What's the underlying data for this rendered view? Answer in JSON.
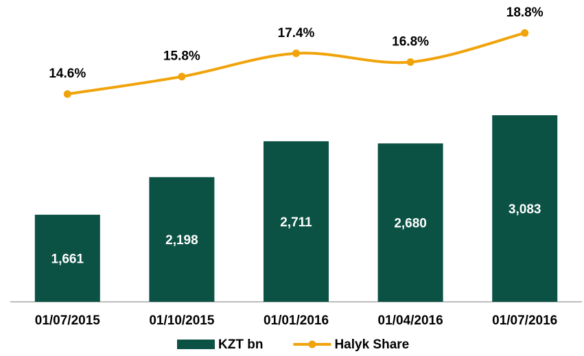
{
  "chart_data": {
    "type": "bar_line",
    "categories": [
      "01/07/2015",
      "01/10/2015",
      "01/01/2016",
      "01/04/2016",
      "01/07/2016"
    ],
    "series": [
      {
        "name": "KZT bn",
        "type": "bar",
        "color": "#0b5245",
        "values": [
          1661,
          2198,
          2711,
          2680,
          3083
        ],
        "value_labels": [
          "1,661",
          "2,198",
          "2,711",
          "2,680",
          "3,083"
        ]
      },
      {
        "name": "Halyk Share",
        "type": "line",
        "axis": "y2",
        "color": "#f0a30a",
        "values": [
          14.6,
          15.8,
          17.4,
          16.8,
          18.8
        ],
        "value_labels": [
          "14.6%",
          "15.8%",
          "17.4%",
          "16.8%",
          "18.8%"
        ]
      }
    ],
    "ylim": [
      416,
      4632
    ],
    "y2lim": [
      0.3,
      20.6
    ],
    "legend": "bottom"
  }
}
